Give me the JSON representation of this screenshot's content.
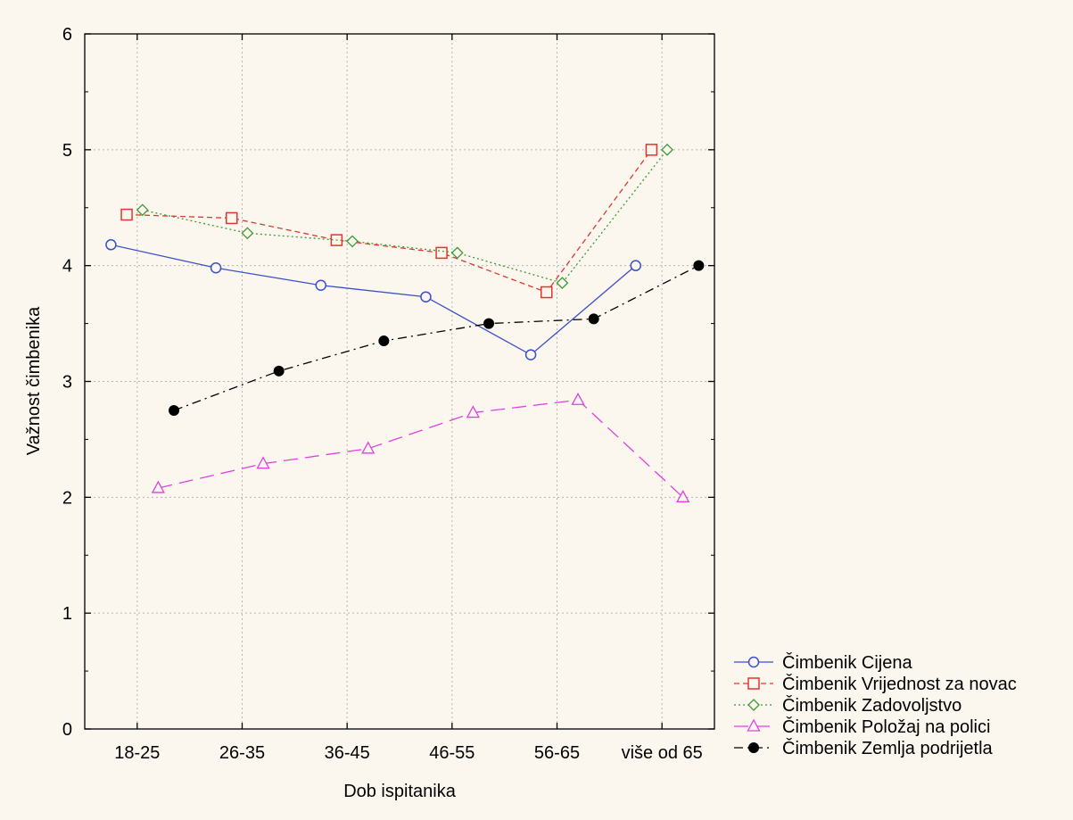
{
  "chart_data": {
    "type": "line",
    "title": "",
    "xlabel": "Dob ispitanika",
    "ylabel": "Važnost čimbenika",
    "categories": [
      "18-25",
      "26-35",
      "36-45",
      "46-55",
      "56-65",
      "više od 65"
    ],
    "ylim": [
      0,
      6
    ],
    "yticks": [
      "0",
      "1",
      "2",
      "3",
      "4",
      "5",
      "6"
    ],
    "grid": true,
    "legend_position": "bottom-right",
    "series": [
      {
        "name": "Čimbenik Cijena",
        "values": [
          4.18,
          3.98,
          3.83,
          3.73,
          3.23,
          4.0
        ],
        "color": "#3b4fc9",
        "marker": "circle",
        "dash": "solid",
        "offset": -0.25
      },
      {
        "name": "Čimbenik Vrijednost za novac",
        "values": [
          4.44,
          4.41,
          4.22,
          4.11,
          3.77,
          5.0
        ],
        "color": "#e2352d",
        "marker": "square",
        "dash": "dashed",
        "offset": -0.1
      },
      {
        "name": "Čimbenik Zadovoljstvo",
        "values": [
          4.48,
          4.28,
          4.21,
          4.11,
          3.85,
          5.0
        ],
        "color": "#3c9a35",
        "marker": "diamond",
        "dash": "dotted",
        "offset": 0.05
      },
      {
        "name": "Čimbenik Položaj na polici",
        "values": [
          2.08,
          2.29,
          2.42,
          2.73,
          2.84,
          2.0
        ],
        "color": "#e040e0",
        "marker": "triangle",
        "dash": "longdash",
        "offset": 0.2
      },
      {
        "name": "Čimbenik Zemlja podrijetla",
        "values": [
          2.75,
          3.09,
          3.35,
          3.5,
          3.54,
          4.0
        ],
        "color": "#000000",
        "marker": "filled-circle",
        "dash": "dashdot",
        "offset": 0.35
      }
    ]
  }
}
